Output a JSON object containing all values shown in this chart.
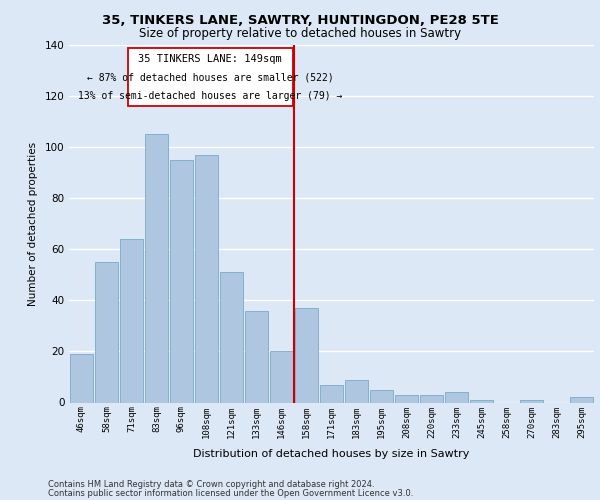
{
  "title1": "35, TINKERS LANE, SAWTRY, HUNTINGDON, PE28 5TE",
  "title2": "Size of property relative to detached houses in Sawtry",
  "xlabel": "Distribution of detached houses by size in Sawtry",
  "ylabel": "Number of detached properties",
  "categories": [
    "46sqm",
    "58sqm",
    "71sqm",
    "83sqm",
    "96sqm",
    "108sqm",
    "121sqm",
    "133sqm",
    "146sqm",
    "158sqm",
    "171sqm",
    "183sqm",
    "195sqm",
    "208sqm",
    "220sqm",
    "233sqm",
    "245sqm",
    "258sqm",
    "270sqm",
    "283sqm",
    "295sqm"
  ],
  "values": [
    19,
    55,
    64,
    105,
    95,
    97,
    51,
    36,
    20,
    37,
    7,
    9,
    5,
    3,
    3,
    4,
    1,
    0,
    1,
    0,
    2
  ],
  "bar_color": "#aec6e0",
  "bar_edge_color": "#7aaac8",
  "ref_line_label": "35 TINKERS LANE: 149sqm",
  "annotation_line1": "← 87% of detached houses are smaller (522)",
  "annotation_line2": "13% of semi-detached houses are larger (79) →",
  "annotation_box_color": "#ffffff",
  "annotation_box_edge": "#cc0000",
  "ref_line_color": "#cc0000",
  "ylim": [
    0,
    140
  ],
  "yticks": [
    0,
    20,
    40,
    60,
    80,
    100,
    120,
    140
  ],
  "background_color": "#dce8f5",
  "grid_color": "#ffffff",
  "footer1": "Contains HM Land Registry data © Crown copyright and database right 2024.",
  "footer2": "Contains public sector information licensed under the Open Government Licence v3.0."
}
